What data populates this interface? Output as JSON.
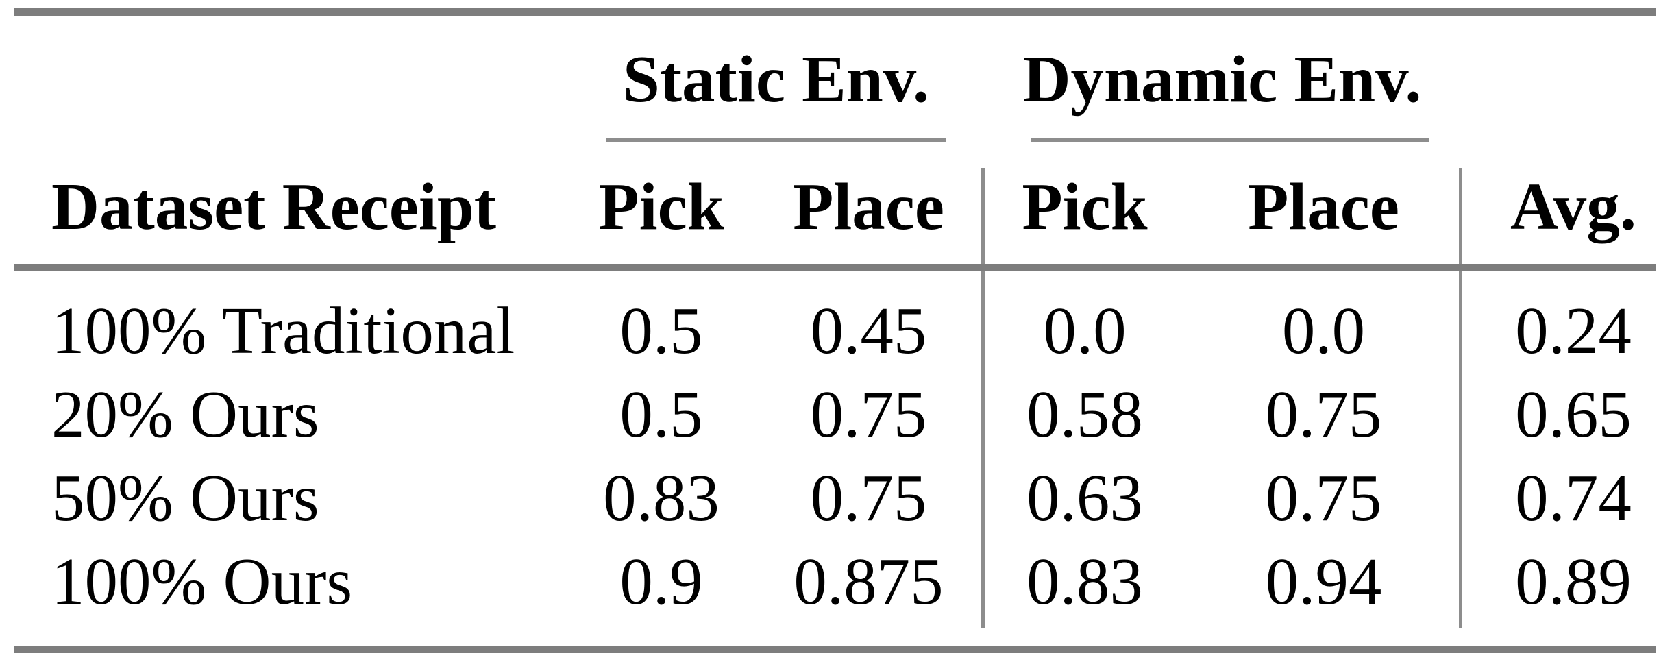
{
  "table": {
    "group_headers": [
      {
        "label": "Static Env."
      },
      {
        "label": "Dynamic Env."
      }
    ],
    "columns": {
      "dataset": "Dataset Receipt",
      "static_pick": "Pick",
      "static_place": "Place",
      "dynamic_pick": "Pick",
      "dynamic_place": "Place",
      "avg": "Avg."
    },
    "rows": [
      {
        "dataset": "100% Traditional",
        "static_pick": "0.5",
        "static_place": "0.45",
        "dynamic_pick": "0.0",
        "dynamic_place": "0.0",
        "avg": "0.24"
      },
      {
        "dataset": "20% Ours",
        "static_pick": "0.5",
        "static_place": "0.75",
        "dynamic_pick": "0.58",
        "dynamic_place": "0.75",
        "avg": "0.65"
      },
      {
        "dataset": "50% Ours",
        "static_pick": "0.83",
        "static_place": "0.75",
        "dynamic_pick": "0.63",
        "dynamic_place": "0.75",
        "avg": "0.74"
      },
      {
        "dataset": "100% Ours",
        "static_pick": "0.9",
        "static_place": "0.875",
        "dynamic_pick": "0.83",
        "dynamic_place": "0.94",
        "avg": "0.89"
      }
    ],
    "colors": {
      "thick_rule": "#7d7d7d",
      "thin_rule": "#8d8d8d",
      "text": "#000000",
      "background": "#ffffff"
    }
  }
}
